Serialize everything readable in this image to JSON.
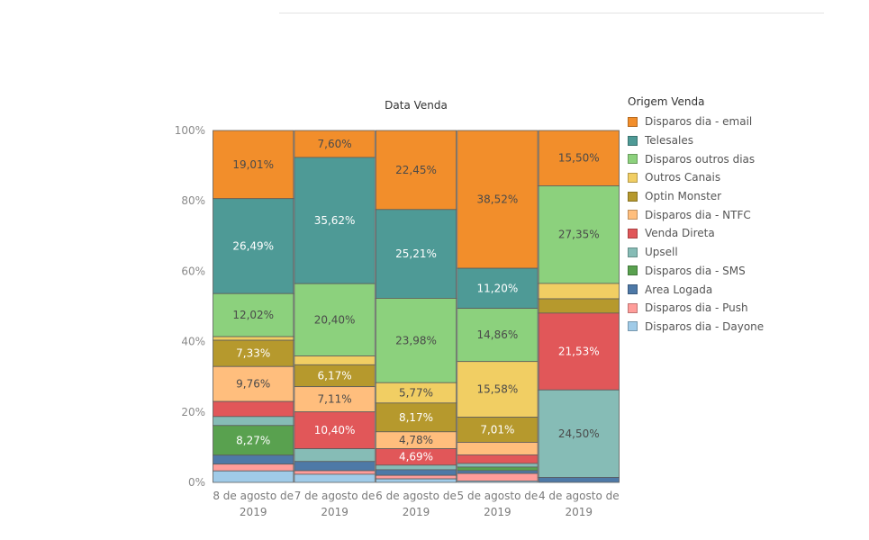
{
  "chart_data": {
    "type": "bar",
    "stacked": true,
    "normalized": true,
    "title": "Data Venda",
    "xlabel": "",
    "ylabel": "",
    "ylim": [
      0,
      100
    ],
    "y_ticks": [
      "0%",
      "20%",
      "40%",
      "60%",
      "80%",
      "100%"
    ],
    "grid": false,
    "legend_title": "Origem Venda",
    "legend_position": "right",
    "categories": [
      [
        "8 de agosto de",
        "2019"
      ],
      [
        "7 de agosto de",
        "2019"
      ],
      [
        "6 de agosto de",
        "2019"
      ],
      [
        "5 de agosto de",
        "2019"
      ],
      [
        "4 de agosto de",
        "2019"
      ]
    ],
    "series": [
      {
        "name": "Disparos dia - email",
        "color": "#f28e2b",
        "values": [
          19.01,
          7.6,
          22.45,
          38.52,
          15.5
        ],
        "labels": [
          "19,01%",
          "7,60%",
          "22,45%",
          "38,52%",
          "15,50%"
        ]
      },
      {
        "name": "Telesales",
        "color": "#4e9a96",
        "values": [
          26.49,
          35.62,
          25.21,
          11.2,
          0
        ],
        "labels": [
          "26,49%",
          "35,62%",
          "25,21%",
          "11,20%",
          ""
        ]
      },
      {
        "name": "Disparos outros dias",
        "color": "#8cd17d",
        "values": [
          12.02,
          20.4,
          23.98,
          14.86,
          27.35
        ],
        "labels": [
          "12,02%",
          "20,40%",
          "23,98%",
          "14,86%",
          "27,35%"
        ]
      },
      {
        "name": "Outros Canais",
        "color": "#f1ce63",
        "values": [
          1.0,
          2.5,
          5.77,
          15.58,
          4.3
        ],
        "labels": [
          "",
          "",
          "5,77%",
          "15,58%",
          ""
        ]
      },
      {
        "name": "Optin Monster",
        "color": "#b6992d",
        "values": [
          7.33,
          6.17,
          8.17,
          7.01,
          4.0
        ],
        "labels": [
          "7,33%",
          "6,17%",
          "8,17%",
          "7,01%",
          ""
        ]
      },
      {
        "name": "Disparos dia - NTFC",
        "color": "#ffbe7d",
        "values": [
          9.76,
          7.11,
          4.78,
          3.5,
          0
        ],
        "labels": [
          "9,76%",
          "7,11%",
          "4,78%",
          "",
          ""
        ]
      },
      {
        "name": "Venda Direta",
        "color": "#e15759",
        "values": [
          4.2,
          10.4,
          4.69,
          2.4,
          21.53
        ],
        "labels": [
          "",
          "10,40%",
          "4,69%",
          "",
          "21,53%"
        ]
      },
      {
        "name": "Upsell",
        "color": "#86bcb6",
        "values": [
          2.5,
          3.6,
          1.3,
          1.0,
          24.5
        ],
        "labels": [
          "",
          "",
          "",
          "",
          "24,50%"
        ]
      },
      {
        "name": "Disparos dia - SMS",
        "color": "#59a14f",
        "values": [
          8.27,
          0,
          0,
          1.0,
          0
        ],
        "labels": [
          "8,27%",
          "",
          "",
          "",
          ""
        ]
      },
      {
        "name": "Area Logada",
        "color": "#4e79a7",
        "values": [
          2.5,
          2.6,
          1.6,
          0.8,
          1.4
        ],
        "labels": [
          "",
          "",
          "",
          "",
          ""
        ]
      },
      {
        "name": "Disparos dia - Push",
        "color": "#ff9d9a",
        "values": [
          1.9,
          1.0,
          1.0,
          2.1,
          0
        ],
        "labels": [
          "",
          "",
          "",
          "",
          ""
        ]
      },
      {
        "name": "Disparos dia - Dayone",
        "color": "#a0cbe8",
        "values": [
          3.2,
          2.3,
          1.0,
          0.4,
          0
        ],
        "labels": [
          "",
          "",
          "",
          "",
          ""
        ]
      }
    ]
  }
}
